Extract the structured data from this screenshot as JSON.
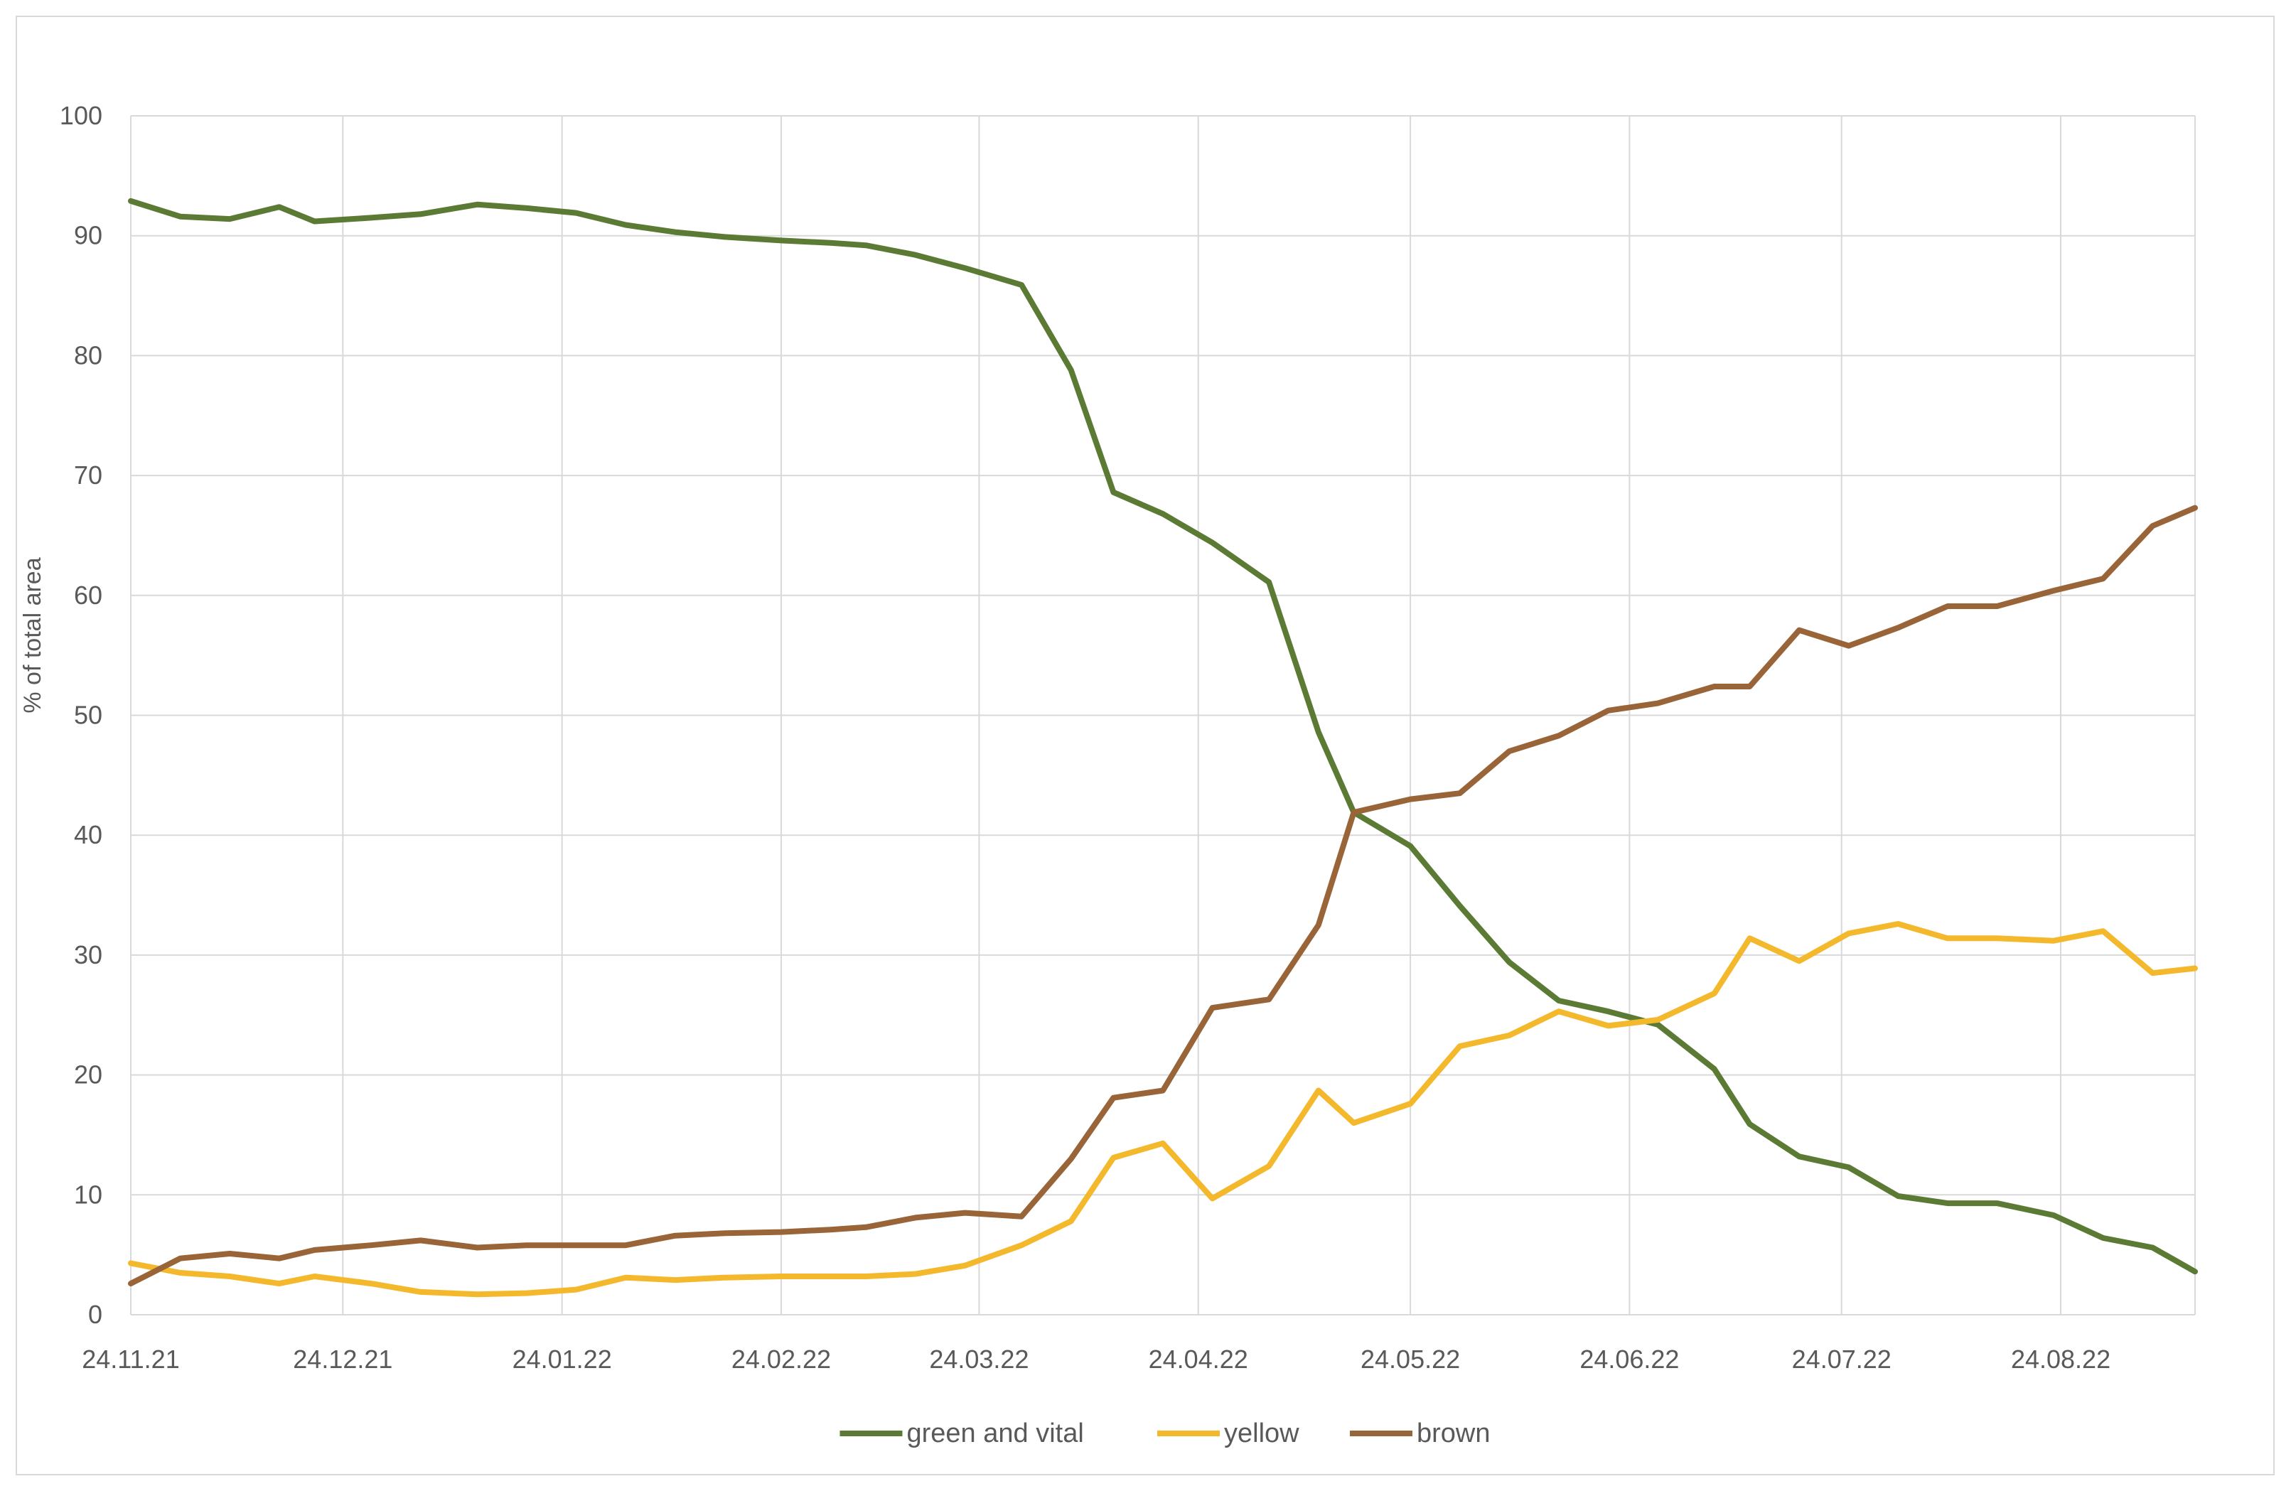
{
  "chart_data": {
    "type": "line",
    "title": "",
    "xlabel": "",
    "ylabel": "% of total area",
    "ylim": [
      0,
      100
    ],
    "yticks": [
      0,
      10,
      20,
      30,
      40,
      50,
      60,
      70,
      80,
      90,
      100
    ],
    "xticks": [
      {
        "date": "2021-11-24",
        "label": "24.11.21"
      },
      {
        "date": "2021-12-24",
        "label": "24.12.21"
      },
      {
        "date": "2022-01-24",
        "label": "24.01.22"
      },
      {
        "date": "2022-02-24",
        "label": "24.02.22"
      },
      {
        "date": "2022-03-24",
        "label": "24.03.22"
      },
      {
        "date": "2022-04-24",
        "label": "24.04.22"
      },
      {
        "date": "2022-05-24",
        "label": "24.05.22"
      },
      {
        "date": "2022-06-24",
        "label": "24.06.22"
      },
      {
        "date": "2022-07-24",
        "label": "24.07.22"
      },
      {
        "date": "2022-08-24",
        "label": "24.08.22"
      }
    ],
    "xlim": [
      "2021-11-24",
      "2022-09-12"
    ],
    "grid": true,
    "legend_position": "bottom",
    "series": [
      {
        "name": "green and vital",
        "color": "#5b7a33",
        "points": [
          [
            "2021-11-24",
            92.9
          ],
          [
            "2021-12-01",
            91.6
          ],
          [
            "2021-12-08",
            91.4
          ],
          [
            "2021-12-15",
            92.4
          ],
          [
            "2021-12-20",
            91.2
          ],
          [
            "2021-12-28",
            91.5
          ],
          [
            "2022-01-04",
            91.8
          ],
          [
            "2022-01-12",
            92.6
          ],
          [
            "2022-01-19",
            92.3
          ],
          [
            "2022-01-26",
            91.9
          ],
          [
            "2022-02-02",
            90.9
          ],
          [
            "2022-02-09",
            90.3
          ],
          [
            "2022-02-16",
            89.9
          ],
          [
            "2022-02-24",
            89.6
          ],
          [
            "2022-03-03",
            89.4
          ],
          [
            "2022-03-08",
            89.2
          ],
          [
            "2022-03-15",
            88.4
          ],
          [
            "2022-03-22",
            87.3
          ],
          [
            "2022-03-30",
            85.9
          ],
          [
            "2022-04-06",
            78.8
          ],
          [
            "2022-04-12",
            68.6
          ],
          [
            "2022-04-19",
            66.8
          ],
          [
            "2022-04-26",
            64.4
          ],
          [
            "2022-05-04",
            61.1
          ],
          [
            "2022-05-11",
            48.6
          ],
          [
            "2022-05-16",
            41.9
          ],
          [
            "2022-05-24",
            39.1
          ],
          [
            "2022-05-31",
            34.1
          ],
          [
            "2022-06-07",
            29.4
          ],
          [
            "2022-06-14",
            26.2
          ],
          [
            "2022-06-21",
            25.3
          ],
          [
            "2022-06-28",
            24.2
          ],
          [
            "2022-07-06",
            20.5
          ],
          [
            "2022-07-11",
            15.9
          ],
          [
            "2022-07-18",
            13.2
          ],
          [
            "2022-07-25",
            12.3
          ],
          [
            "2022-08-01",
            9.9
          ],
          [
            "2022-08-08",
            9.3
          ],
          [
            "2022-08-15",
            9.3
          ],
          [
            "2022-08-23",
            8.3
          ],
          [
            "2022-08-30",
            6.4
          ],
          [
            "2022-09-06",
            5.6
          ],
          [
            "2022-09-12",
            3.6
          ]
        ]
      },
      {
        "name": "yellow",
        "color": "#f4b82c",
        "points": [
          [
            "2021-11-24",
            4.3
          ],
          [
            "2021-12-01",
            3.5
          ],
          [
            "2021-12-08",
            3.2
          ],
          [
            "2021-12-15",
            2.6
          ],
          [
            "2021-12-20",
            3.2
          ],
          [
            "2021-12-28",
            2.6
          ],
          [
            "2022-01-04",
            1.9
          ],
          [
            "2022-01-12",
            1.7
          ],
          [
            "2022-01-19",
            1.8
          ],
          [
            "2022-01-26",
            2.1
          ],
          [
            "2022-02-02",
            3.1
          ],
          [
            "2022-02-09",
            2.9
          ],
          [
            "2022-02-16",
            3.1
          ],
          [
            "2022-02-24",
            3.2
          ],
          [
            "2022-03-03",
            3.2
          ],
          [
            "2022-03-08",
            3.2
          ],
          [
            "2022-03-15",
            3.4
          ],
          [
            "2022-03-22",
            4.1
          ],
          [
            "2022-03-30",
            5.8
          ],
          [
            "2022-04-06",
            7.8
          ],
          [
            "2022-04-12",
            13.1
          ],
          [
            "2022-04-19",
            14.3
          ],
          [
            "2022-04-26",
            9.7
          ],
          [
            "2022-05-04",
            12.4
          ],
          [
            "2022-05-11",
            18.7
          ],
          [
            "2022-05-16",
            16.0
          ],
          [
            "2022-05-24",
            17.6
          ],
          [
            "2022-05-31",
            22.4
          ],
          [
            "2022-06-07",
            23.3
          ],
          [
            "2022-06-14",
            25.3
          ],
          [
            "2022-06-21",
            24.1
          ],
          [
            "2022-06-28",
            24.6
          ],
          [
            "2022-07-06",
            26.8
          ],
          [
            "2022-07-11",
            31.4
          ],
          [
            "2022-07-18",
            29.5
          ],
          [
            "2022-07-25",
            31.8
          ],
          [
            "2022-08-01",
            32.6
          ],
          [
            "2022-08-08",
            31.4
          ],
          [
            "2022-08-15",
            31.4
          ],
          [
            "2022-08-23",
            31.2
          ],
          [
            "2022-08-30",
            32.0
          ],
          [
            "2022-09-06",
            28.5
          ],
          [
            "2022-09-12",
            28.9
          ]
        ]
      },
      {
        "name": "brown",
        "color": "#986438",
        "points": [
          [
            "2021-11-24",
            2.6
          ],
          [
            "2021-12-01",
            4.7
          ],
          [
            "2021-12-08",
            5.1
          ],
          [
            "2021-12-15",
            4.7
          ],
          [
            "2021-12-20",
            5.4
          ],
          [
            "2021-12-28",
            5.8
          ],
          [
            "2022-01-04",
            6.2
          ],
          [
            "2022-01-12",
            5.6
          ],
          [
            "2022-01-19",
            5.8
          ],
          [
            "2022-01-26",
            5.8
          ],
          [
            "2022-02-02",
            5.8
          ],
          [
            "2022-02-09",
            6.6
          ],
          [
            "2022-02-16",
            6.8
          ],
          [
            "2022-02-24",
            6.9
          ],
          [
            "2022-03-03",
            7.1
          ],
          [
            "2022-03-08",
            7.3
          ],
          [
            "2022-03-15",
            8.1
          ],
          [
            "2022-03-22",
            8.5
          ],
          [
            "2022-03-30",
            8.2
          ],
          [
            "2022-04-06",
            13.0
          ],
          [
            "2022-04-12",
            18.1
          ],
          [
            "2022-04-19",
            18.7
          ],
          [
            "2022-04-26",
            25.6
          ],
          [
            "2022-05-04",
            26.3
          ],
          [
            "2022-05-11",
            32.5
          ],
          [
            "2022-05-16",
            41.9
          ],
          [
            "2022-05-24",
            43.0
          ],
          [
            "2022-05-31",
            43.5
          ],
          [
            "2022-06-07",
            47.0
          ],
          [
            "2022-06-14",
            48.3
          ],
          [
            "2022-06-21",
            50.4
          ],
          [
            "2022-06-28",
            51.0
          ],
          [
            "2022-07-06",
            52.4
          ],
          [
            "2022-07-11",
            52.4
          ],
          [
            "2022-07-18",
            57.1
          ],
          [
            "2022-07-25",
            55.8
          ],
          [
            "2022-08-01",
            57.3
          ],
          [
            "2022-08-08",
            59.1
          ],
          [
            "2022-08-15",
            59.1
          ],
          [
            "2022-08-23",
            60.4
          ],
          [
            "2022-08-30",
            61.4
          ],
          [
            "2022-09-06",
            65.8
          ],
          [
            "2022-09-12",
            67.3
          ]
        ]
      }
    ]
  }
}
